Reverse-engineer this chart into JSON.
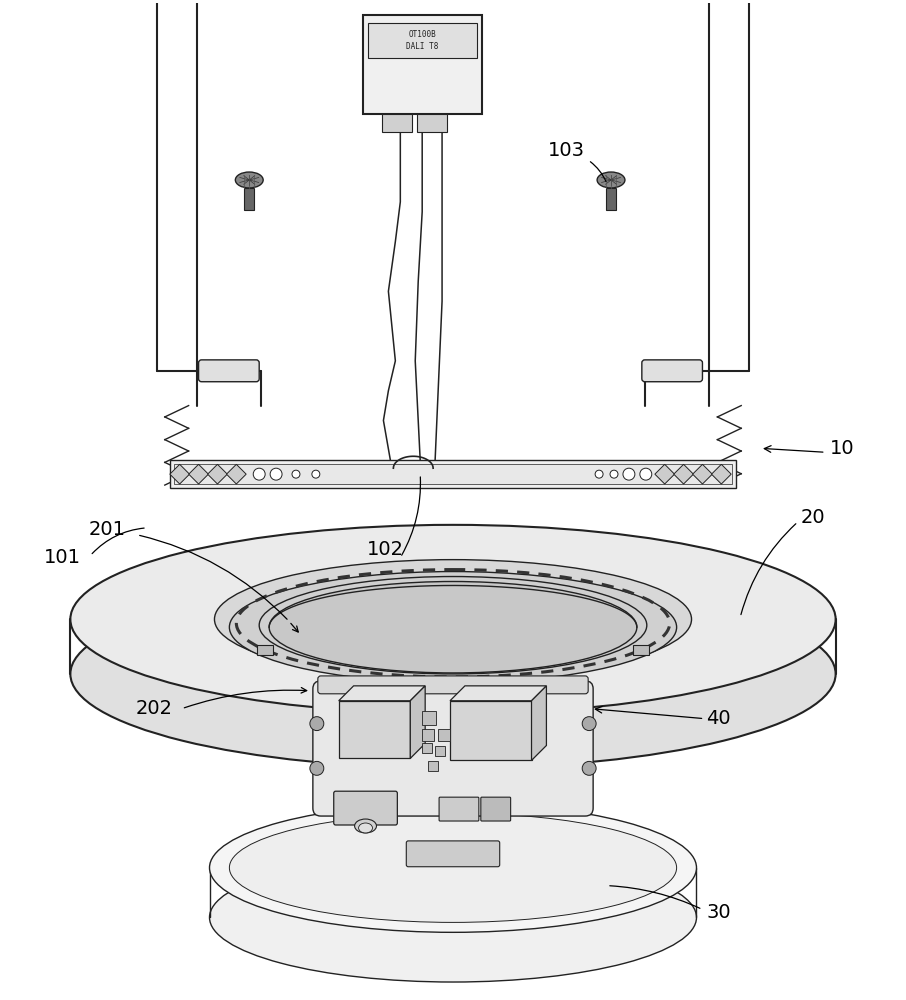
{
  "bg_color": "#ffffff",
  "line_color": "#555555",
  "dark_line": "#222222",
  "label_color": "#000000",
  "label_fontsize": 14,
  "fig_width": 9.06,
  "fig_height": 10.0
}
